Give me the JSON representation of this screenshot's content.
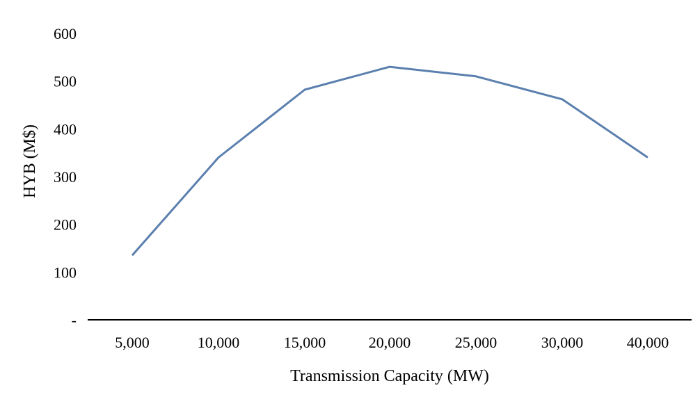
{
  "chart_data": {
    "type": "line",
    "title": "",
    "xlabel": "Transmission Capacity (MW)",
    "ylabel": "HYB (M$)",
    "categories": [
      "5,000",
      "10,000",
      "15,000",
      "20,000",
      "25,000",
      "30,000",
      "40,000"
    ],
    "series": [
      {
        "values": [
          135,
          340,
          482,
          530,
          510,
          462,
          340
        ]
      }
    ],
    "ylim": [
      0,
      600
    ],
    "yticks": [
      "-",
      "100",
      "200",
      "300",
      "400",
      "500",
      "600"
    ],
    "grid": false,
    "legend": "none",
    "line_color": "#5b7fae",
    "axis_color": "#000000"
  }
}
